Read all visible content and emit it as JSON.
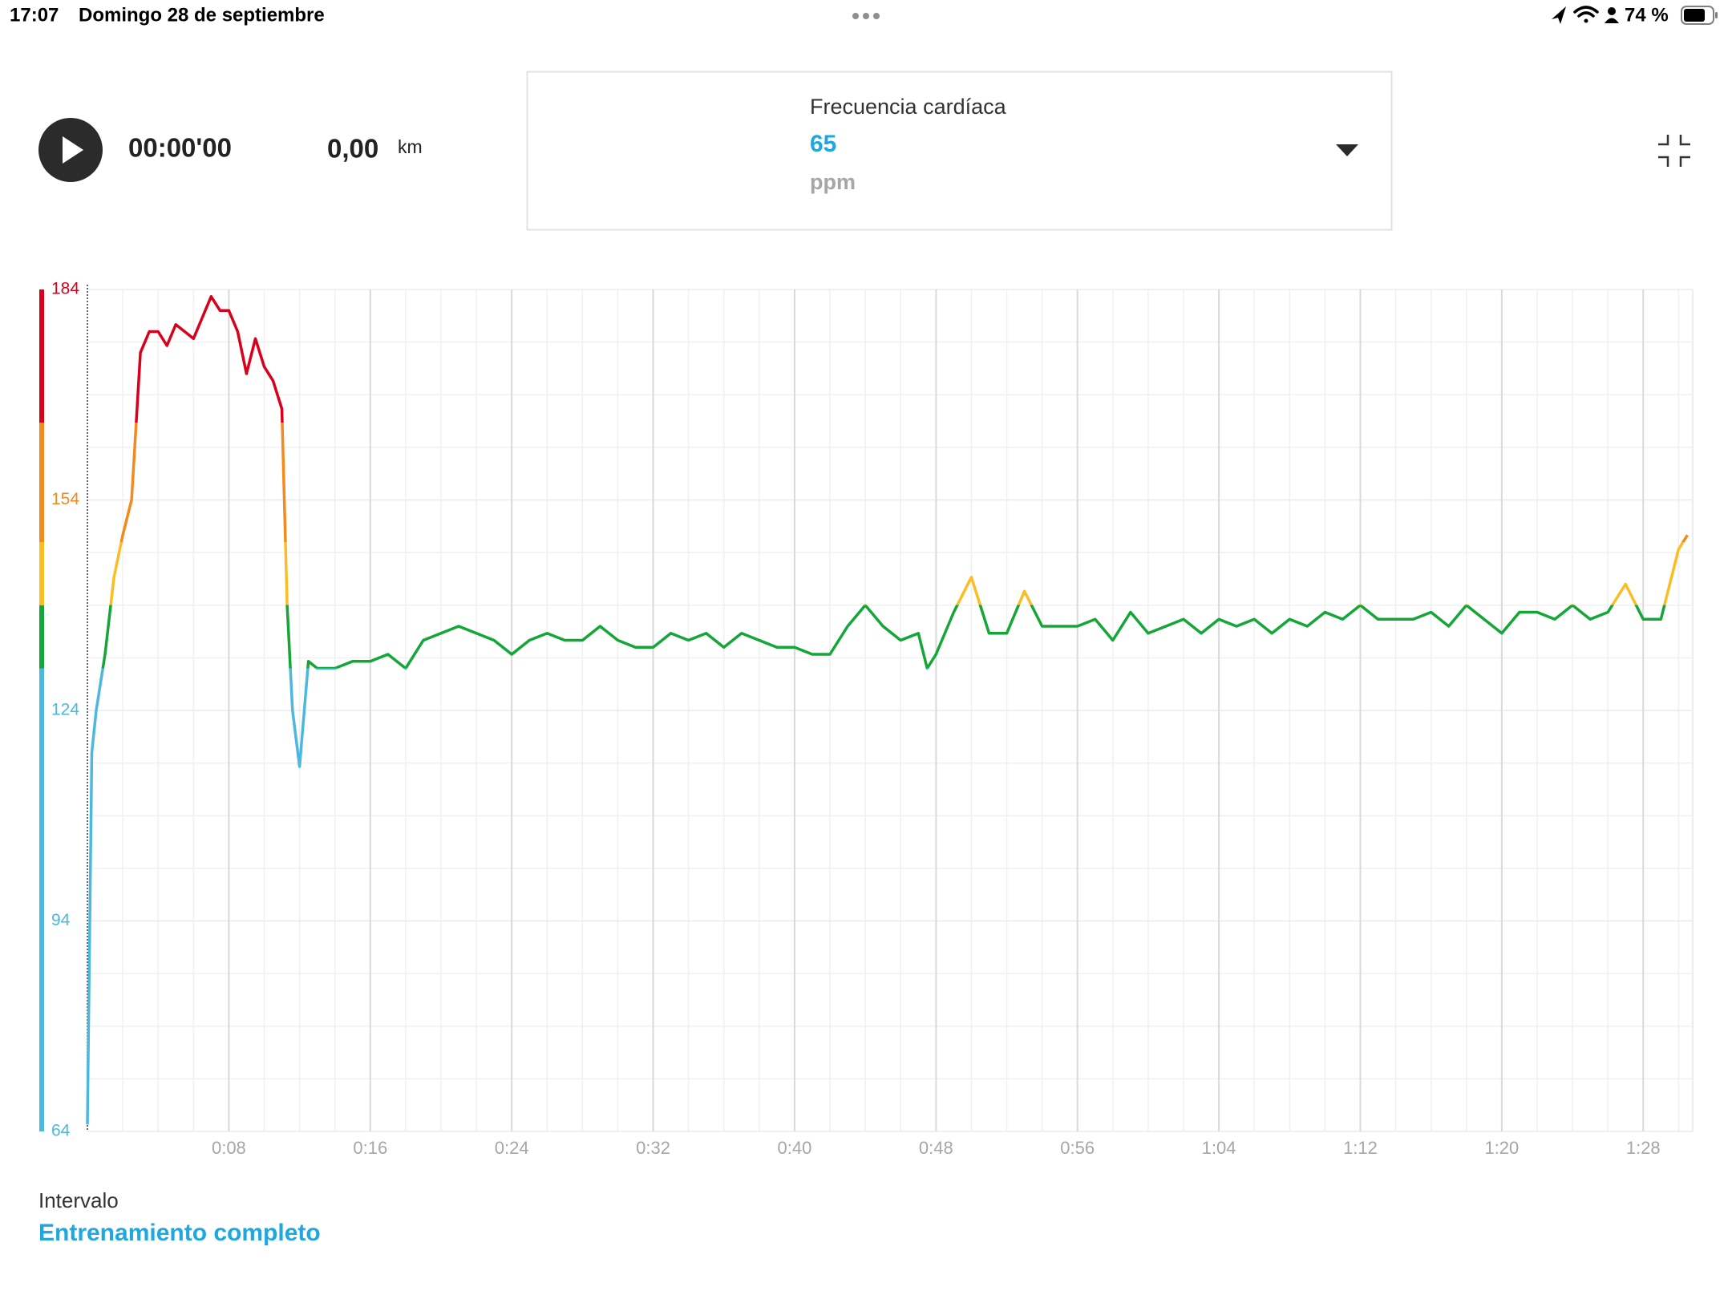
{
  "status_bar": {
    "time": "17:07",
    "date": "Domingo 28 de septiembre",
    "battery": "74 %"
  },
  "player": {
    "elapsed": "00:00'00",
    "distance": "0,00",
    "distance_unit": "km"
  },
  "metric_selector": {
    "label": "Frecuencia cardíaca",
    "value": "65",
    "unit": "ppm"
  },
  "interval": {
    "label": "Intervalo",
    "value": "Entrenamiento completo"
  },
  "chart_data": {
    "type": "line",
    "x": [
      0,
      0.25,
      0.5,
      1,
      1.5,
      2,
      2.5,
      3,
      3.5,
      4,
      4.5,
      5,
      5.5,
      6,
      6.5,
      7,
      7.5,
      8,
      8.5,
      9,
      9.5,
      10,
      10.5,
      11,
      11.3,
      11.6,
      12,
      12.5,
      13,
      14,
      15,
      16,
      17,
      18,
      19,
      20,
      21,
      22,
      23,
      24,
      25,
      26,
      27,
      28,
      29,
      30,
      31,
      32,
      33,
      34,
      35,
      36,
      37,
      38,
      39,
      40,
      41,
      42,
      43,
      44,
      45,
      46,
      47,
      47.5,
      48,
      49,
      50,
      51,
      52,
      53,
      54,
      55,
      56,
      57,
      58,
      59,
      60,
      61,
      62,
      63,
      64,
      65,
      66,
      67,
      68,
      69,
      70,
      71,
      72,
      73,
      74,
      75,
      76,
      77,
      78,
      79,
      80,
      81,
      82,
      83,
      84,
      85,
      86,
      87,
      88,
      89,
      90,
      90.5
    ],
    "values": [
      65,
      118,
      124,
      132,
      143,
      149,
      154,
      175,
      178,
      178,
      176,
      179,
      178,
      177,
      180,
      183,
      181,
      181,
      178,
      172,
      177,
      173,
      171,
      167,
      139,
      124,
      116,
      131,
      130,
      130,
      131,
      131,
      132,
      130,
      134,
      135,
      136,
      135,
      134,
      132,
      134,
      135,
      134,
      134,
      136,
      134,
      133,
      133,
      135,
      134,
      135,
      133,
      135,
      134,
      133,
      133,
      132,
      132,
      136,
      139,
      136,
      134,
      135,
      130,
      132,
      138,
      143,
      135,
      135,
      141,
      136,
      136,
      136,
      137,
      134,
      138,
      135,
      136,
      137,
      135,
      137,
      136,
      137,
      135,
      137,
      136,
      138,
      137,
      139,
      137,
      137,
      137,
      138,
      136,
      139,
      137,
      135,
      138,
      138,
      137,
      139,
      137,
      138,
      142,
      137,
      137,
      147,
      149
    ],
    "xlim": [
      0,
      90.8
    ],
    "ylim": [
      64,
      184
    ],
    "xticks": [
      {
        "value": 8,
        "label": "0:08"
      },
      {
        "value": 16,
        "label": "0:16"
      },
      {
        "value": 24,
        "label": "0:24"
      },
      {
        "value": 32,
        "label": "0:32"
      },
      {
        "value": 40,
        "label": "0:40"
      },
      {
        "value": 48,
        "label": "0:48"
      },
      {
        "value": 56,
        "label": "0:56"
      },
      {
        "value": 64,
        "label": "1:04"
      },
      {
        "value": 72,
        "label": "1:12"
      },
      {
        "value": 80,
        "label": "1:20"
      },
      {
        "value": 88,
        "label": "1:28"
      }
    ],
    "yticks": [
      64,
      94,
      124,
      154,
      184
    ],
    "zones": [
      {
        "min": 64,
        "max": 130,
        "color": "#4cb8df"
      },
      {
        "min": 130,
        "max": 139,
        "color": "#14a637"
      },
      {
        "min": 139,
        "max": 148,
        "color": "#fbbd23"
      },
      {
        "min": 148,
        "max": 165,
        "color": "#f28a1e"
      },
      {
        "min": 165,
        "max": 184,
        "color": "#d9001b"
      }
    ],
    "grid": true
  }
}
